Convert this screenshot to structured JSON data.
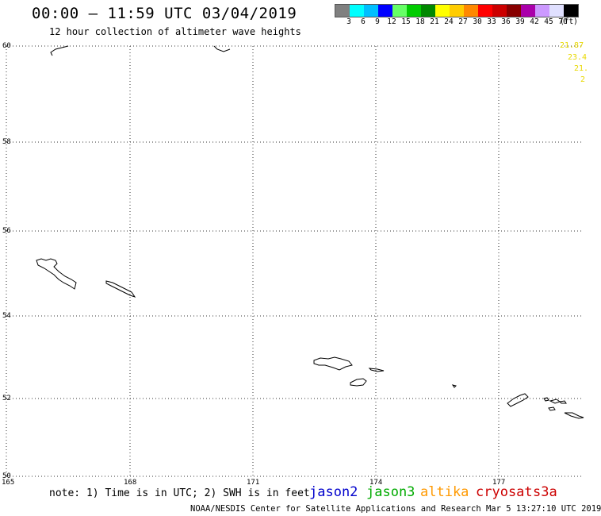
{
  "title": "00:00 – 11:59 UTC 03/04/2019",
  "subtitle": "12 hour collection of altimeter wave heights",
  "colorbar": {
    "colors": [
      "#808080",
      "#00ffff",
      "#00bfff",
      "#0000ff",
      "#66ff66",
      "#00cc00",
      "#008800",
      "#ffff00",
      "#ffcc00",
      "#ff8800",
      "#ff0000",
      "#cc0000",
      "#880000",
      "#aa00aa",
      "#cc99ff",
      "#e0e0ff",
      "#000000"
    ],
    "labels": [
      "3",
      "6",
      "9",
      "12",
      "15",
      "18",
      "21",
      "24",
      "27",
      "30",
      "33",
      "36",
      "39",
      "42",
      "45",
      "70"
    ],
    "unit": "(ft)"
  },
  "map": {
    "lat_labels": [
      "60",
      "58",
      "56",
      "54",
      "52",
      "50"
    ],
    "lon_labels": [
      "165",
      "168",
      "171",
      "174",
      "177"
    ],
    "value_labels": [
      "21.87",
      "23.4",
      "21.",
      "2"
    ]
  },
  "note": "note: 1) Time is in UTC; 2) SWH is in feet",
  "satellites": [
    {
      "name": "jason2",
      "color": "#0000cc"
    },
    {
      "name": "jason3",
      "color": "#00aa00"
    },
    {
      "name": "altika",
      "color": "#ff9900"
    },
    {
      "name": "cryosat",
      "color": "#cc0000"
    },
    {
      "name": "s3a",
      "color": "#cc0000"
    }
  ],
  "footer": "NOAA/NESDIS Center for Satellite Applications and Research   Mar  5 13:27:10 UTC 2019"
}
